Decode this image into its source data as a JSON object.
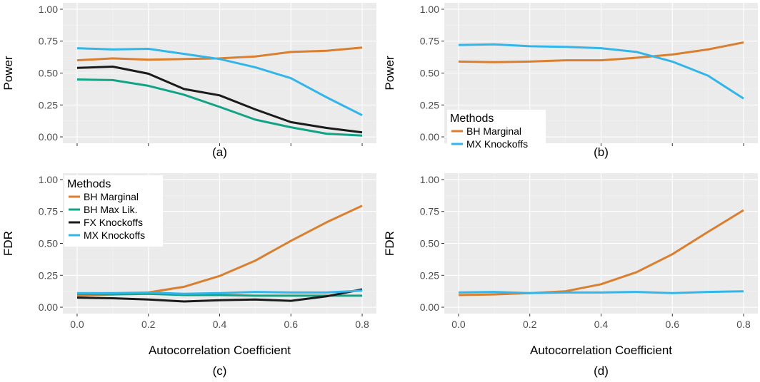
{
  "colors": {
    "BH Marginal": "#d97f2f",
    "BH Max Lik.": "#12a386",
    "FX Knockoffs": "#1a1a1a",
    "MX Knockoffs": "#32b5e9"
  },
  "chart_data": [
    {
      "id": "a",
      "type": "line",
      "caption": "(a)",
      "xlabel": "",
      "ylabel": "Power",
      "xlim": [
        -0.04,
        0.84
      ],
      "ylim": [
        -0.05,
        1.05
      ],
      "x_ticks": [
        "0.0",
        "0.2",
        "0.4",
        "0.6",
        "0.8"
      ],
      "y_ticks": [
        "0.00",
        "0.25",
        "0.50",
        "0.75",
        "1.00"
      ],
      "show_x_tick_labels": false,
      "legend": null,
      "x": [
        0.0,
        0.1,
        0.2,
        0.3,
        0.4,
        0.5,
        0.6,
        0.7,
        0.8
      ],
      "series": [
        {
          "name": "BH Marginal",
          "values": [
            0.6,
            0.615,
            0.605,
            0.61,
            0.615,
            0.63,
            0.665,
            0.675,
            0.7
          ]
        },
        {
          "name": "BH Max Lik.",
          "values": [
            0.45,
            0.445,
            0.4,
            0.33,
            0.235,
            0.135,
            0.075,
            0.025,
            0.01
          ]
        },
        {
          "name": "FX Knockoffs",
          "values": [
            0.54,
            0.55,
            0.495,
            0.375,
            0.325,
            0.215,
            0.115,
            0.07,
            0.035
          ]
        },
        {
          "name": "MX Knockoffs",
          "values": [
            0.695,
            0.685,
            0.69,
            0.65,
            0.61,
            0.545,
            0.46,
            0.31,
            0.17
          ]
        }
      ]
    },
    {
      "id": "b",
      "type": "line",
      "caption": "(b)",
      "xlabel": "",
      "ylabel": "Power",
      "xlim": [
        -0.04,
        0.84
      ],
      "ylim": [
        -0.05,
        1.05
      ],
      "x_ticks": [
        "0.0",
        "0.2",
        "0.4",
        "0.6",
        "0.8"
      ],
      "y_ticks": [
        "0.00",
        "0.25",
        "0.50",
        "0.75",
        "1.00"
      ],
      "show_x_tick_labels": false,
      "legend": {
        "title": "Methods",
        "entries": [
          "BH Marginal",
          "MX Knockoffs"
        ],
        "placement": "bottom-left"
      },
      "x": [
        0.0,
        0.1,
        0.2,
        0.3,
        0.4,
        0.5,
        0.6,
        0.7,
        0.8
      ],
      "series": [
        {
          "name": "BH Marginal",
          "values": [
            0.59,
            0.585,
            0.59,
            0.6,
            0.6,
            0.62,
            0.645,
            0.685,
            0.74
          ]
        },
        {
          "name": "MX Knockoffs",
          "values": [
            0.72,
            0.725,
            0.71,
            0.705,
            0.695,
            0.665,
            0.59,
            0.48,
            0.3
          ]
        }
      ]
    },
    {
      "id": "c",
      "type": "line",
      "caption": "(c)",
      "xlabel": "Autocorrelation Coefficient",
      "ylabel": "FDR",
      "xlim": [
        -0.04,
        0.84
      ],
      "ylim": [
        -0.05,
        1.05
      ],
      "x_ticks": [
        "0.0",
        "0.2",
        "0.4",
        "0.6",
        "0.8"
      ],
      "y_ticks": [
        "0.00",
        "0.25",
        "0.50",
        "0.75",
        "1.00"
      ],
      "show_x_tick_labels": true,
      "legend": {
        "title": "Methods",
        "entries": [
          "BH Marginal",
          "BH Max Lik.",
          "FX Knockoffs",
          "MX Knockoffs"
        ],
        "placement": "top-left"
      },
      "x": [
        0.0,
        0.1,
        0.2,
        0.3,
        0.4,
        0.5,
        0.6,
        0.7,
        0.8
      ],
      "series": [
        {
          "name": "BH Marginal",
          "values": [
            0.09,
            0.1,
            0.115,
            0.16,
            0.245,
            0.365,
            0.52,
            0.665,
            0.795
          ]
        },
        {
          "name": "BH Max Lik.",
          "values": [
            0.105,
            0.1,
            0.105,
            0.095,
            0.095,
            0.09,
            0.09,
            0.09,
            0.09
          ]
        },
        {
          "name": "FX Knockoffs",
          "values": [
            0.075,
            0.07,
            0.06,
            0.045,
            0.055,
            0.06,
            0.05,
            0.085,
            0.14
          ]
        },
        {
          "name": "MX Knockoffs",
          "values": [
            0.11,
            0.11,
            0.115,
            0.105,
            0.11,
            0.12,
            0.115,
            0.115,
            0.13
          ]
        }
      ]
    },
    {
      "id": "d",
      "type": "line",
      "caption": "(d)",
      "xlabel": "Autocorrelation Coefficient",
      "ylabel": "FDR",
      "xlim": [
        -0.04,
        0.84
      ],
      "ylim": [
        -0.05,
        1.05
      ],
      "x_ticks": [
        "0.0",
        "0.2",
        "0.4",
        "0.6",
        "0.8"
      ],
      "y_ticks": [
        "0.00",
        "0.25",
        "0.50",
        "0.75",
        "1.00"
      ],
      "show_x_tick_labels": true,
      "legend": null,
      "x": [
        0.0,
        0.1,
        0.2,
        0.3,
        0.4,
        0.5,
        0.6,
        0.7,
        0.8
      ],
      "series": [
        {
          "name": "BH Marginal",
          "values": [
            0.095,
            0.1,
            0.11,
            0.125,
            0.18,
            0.275,
            0.415,
            0.59,
            0.76
          ]
        },
        {
          "name": "MX Knockoffs",
          "values": [
            0.115,
            0.12,
            0.11,
            0.115,
            0.115,
            0.12,
            0.11,
            0.12,
            0.125
          ]
        }
      ]
    }
  ]
}
